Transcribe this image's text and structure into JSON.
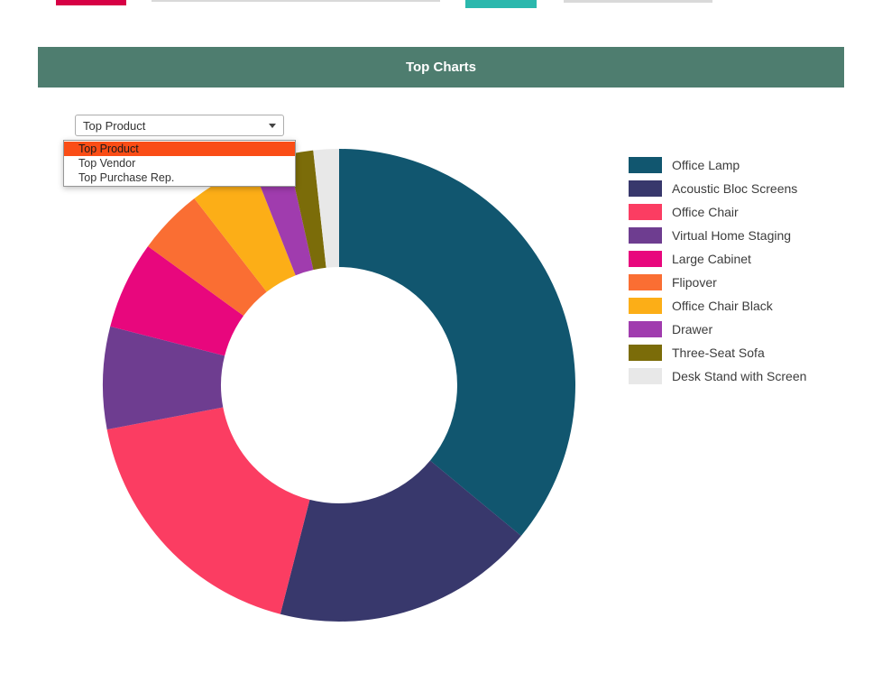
{
  "header": {
    "title": "Top Charts",
    "bg_color": "#4e7d6f"
  },
  "top_strip": {
    "left_bar_color": "#d70045",
    "right_bar_color": "#2bb8ad",
    "track_color": "#d9d9d9"
  },
  "filter": {
    "selected": "Top Product",
    "options": [
      "Top Product",
      "Top Vendor",
      "Top Purchase Rep."
    ],
    "highlight_index": 0,
    "highlight_color": "#fa4d16"
  },
  "chart_data": {
    "type": "pie",
    "subtype": "donut",
    "title": "Top Charts",
    "labels": [
      "Office Lamp",
      "Acoustic Bloc Screens",
      "Office Chair",
      "Virtual Home Staging",
      "Large Cabinet",
      "Flipover",
      "Office Chair Black",
      "Drawer",
      "Three-Seat Sofa",
      "Desk Stand with Screen"
    ],
    "values": [
      36,
      18,
      18,
      7,
      6,
      4.5,
      4.5,
      2.5,
      1.75,
      1.75
    ],
    "values_unit": "percent",
    "colors": [
      "#11566f",
      "#38386c",
      "#fb3d62",
      "#6e3d90",
      "#e8077d",
      "#fa6e33",
      "#fcae17",
      "#a03cae",
      "#7b6c09",
      "#e8e8e8"
    ],
    "inner_radius_ratio": 0.5,
    "start_angle_deg": 0,
    "direction": "clockwise",
    "legend_position": "right"
  }
}
